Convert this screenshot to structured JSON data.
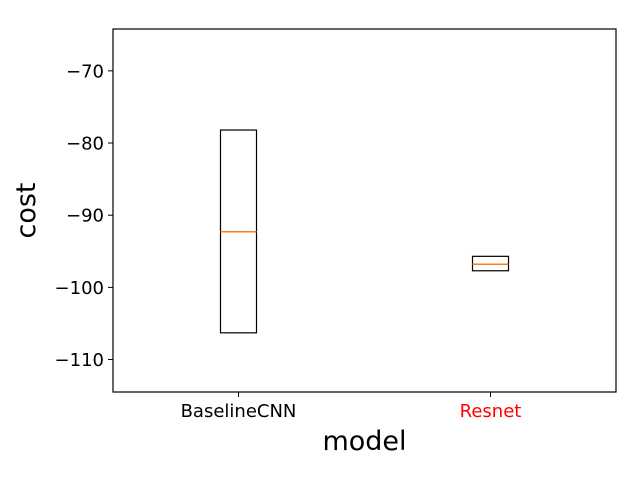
{
  "chart_data": {
    "type": "box",
    "xlabel": "model",
    "ylabel": "cost",
    "ylim": [
      -114.5,
      -64.2
    ],
    "yticks": [
      -70,
      -80,
      -90,
      -100,
      -110
    ],
    "categories": [
      "BaselineCNN",
      "Resnet"
    ],
    "category_colors": [
      "#000000",
      "#ff0000"
    ],
    "boxes": [
      {
        "q1": -106.3,
        "median": -92.3,
        "q3": -78.2
      },
      {
        "q1": -97.7,
        "median": -96.8,
        "q3": -95.7
      }
    ],
    "box_color": "#000000",
    "median_color": "#ff7f0e",
    "grid": false
  }
}
